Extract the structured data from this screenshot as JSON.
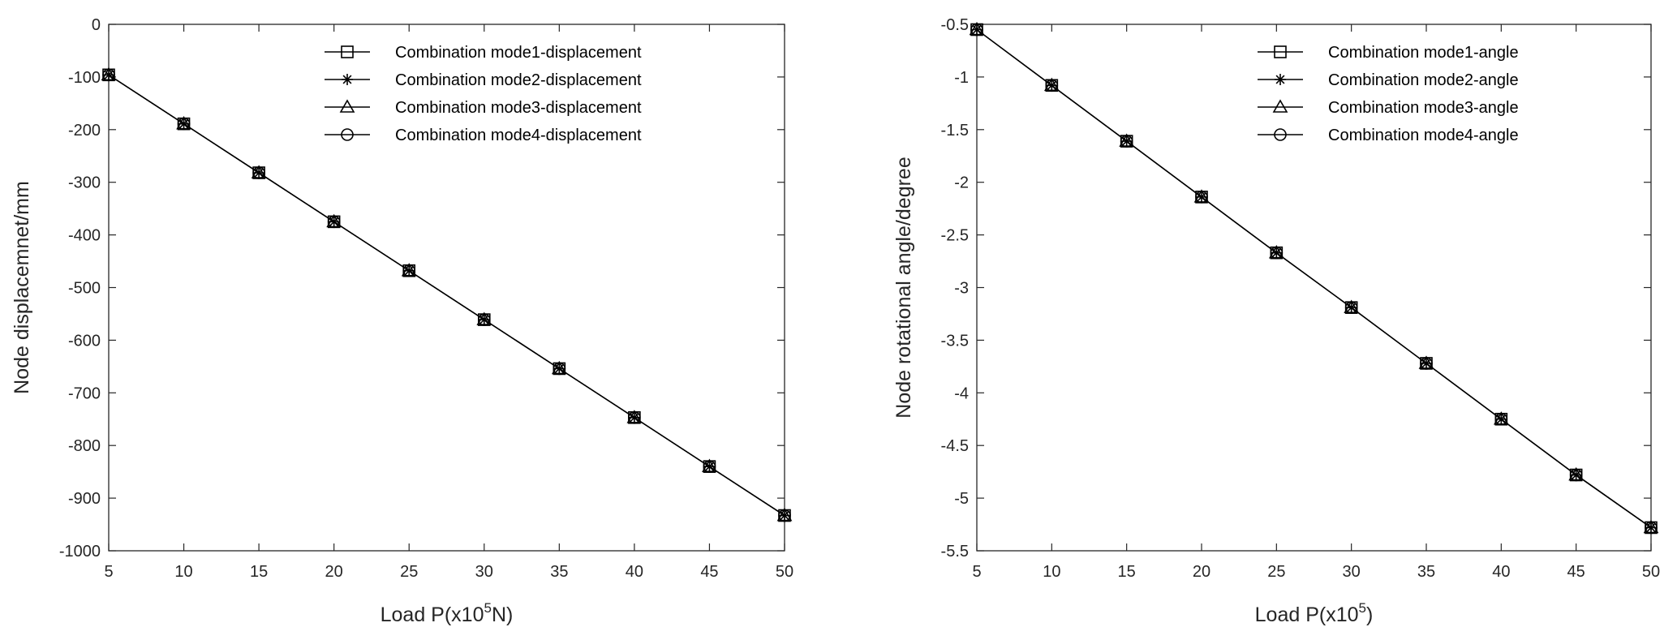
{
  "chart_data": [
    {
      "type": "line",
      "x": [
        5,
        10,
        15,
        20,
        25,
        30,
        35,
        40,
        45,
        50
      ],
      "series": [
        {
          "name": "Combination mode1-displacement",
          "marker": "square",
          "values": [
            -96,
            -189,
            -282,
            -375,
            -468,
            -561,
            -654,
            -747,
            -840,
            -933
          ]
        },
        {
          "name": "Combination mode2-displacement",
          "marker": "asterisk",
          "values": [
            -96,
            -189,
            -282,
            -375,
            -468,
            -561,
            -654,
            -747,
            -840,
            -933
          ]
        },
        {
          "name": "Combination mode3-displacement",
          "marker": "triangle",
          "values": [
            -96,
            -189,
            -282,
            -375,
            -468,
            -561,
            -654,
            -747,
            -840,
            -933
          ]
        },
        {
          "name": "Combination mode4-displacement",
          "marker": "circle",
          "values": [
            -96,
            -189,
            -282,
            -375,
            -468,
            -561,
            -654,
            -747,
            -840,
            -933
          ]
        }
      ],
      "xlabel": {
        "prefix": "Load P(x10",
        "sup": "5",
        "suffix": "N)"
      },
      "ylabel": "Node displacemnet/mm",
      "xlim": [
        5,
        50
      ],
      "ylim": [
        -1000,
        0
      ],
      "xticks": [
        "5",
        "10",
        "15",
        "20",
        "25",
        "30",
        "35",
        "40",
        "45",
        "50"
      ],
      "yticks": [
        "0",
        "-100",
        "-200",
        "-300",
        "-400",
        "-500",
        "-600",
        "-700",
        "-800",
        "-900",
        "-1000"
      ],
      "grid": false,
      "legend_position": "top-right",
      "line_color": "#000000"
    },
    {
      "type": "line",
      "x": [
        5,
        10,
        15,
        20,
        25,
        30,
        35,
        40,
        45,
        50
      ],
      "series": [
        {
          "name": "Combination mode1-angle",
          "marker": "square",
          "values": [
            -0.55,
            -1.08,
            -1.61,
            -2.14,
            -2.67,
            -3.19,
            -3.72,
            -4.25,
            -4.78,
            -5.28
          ]
        },
        {
          "name": "Combination mode2-angle",
          "marker": "asterisk",
          "values": [
            -0.55,
            -1.08,
            -1.61,
            -2.14,
            -2.67,
            -3.19,
            -3.72,
            -4.25,
            -4.78,
            -5.28
          ]
        },
        {
          "name": "Combination mode3-angle",
          "marker": "triangle",
          "values": [
            -0.55,
            -1.08,
            -1.61,
            -2.14,
            -2.67,
            -3.19,
            -3.72,
            -4.25,
            -4.78,
            -5.28
          ]
        },
        {
          "name": "Combination mode4-angle",
          "marker": "circle",
          "values": [
            -0.55,
            -1.08,
            -1.61,
            -2.14,
            -2.67,
            -3.19,
            -3.72,
            -4.25,
            -4.78,
            -5.28
          ]
        }
      ],
      "xlabel": {
        "prefix": "Load P(x10",
        "sup": "5",
        "suffix": ")"
      },
      "ylabel": "Node rotational angle/degree",
      "xlim": [
        5,
        50
      ],
      "ylim": [
        -5.5,
        -0.5
      ],
      "xticks": [
        "5",
        "10",
        "15",
        "20",
        "25",
        "30",
        "35",
        "40",
        "45",
        "50"
      ],
      "yticks": [
        "-0.5",
        "-1",
        "-1.5",
        "-2",
        "-2.5",
        "-3",
        "-3.5",
        "-4",
        "-4.5",
        "-5",
        "-5.5"
      ],
      "grid": false,
      "legend_position": "top-right",
      "line_color": "#000000"
    }
  ]
}
